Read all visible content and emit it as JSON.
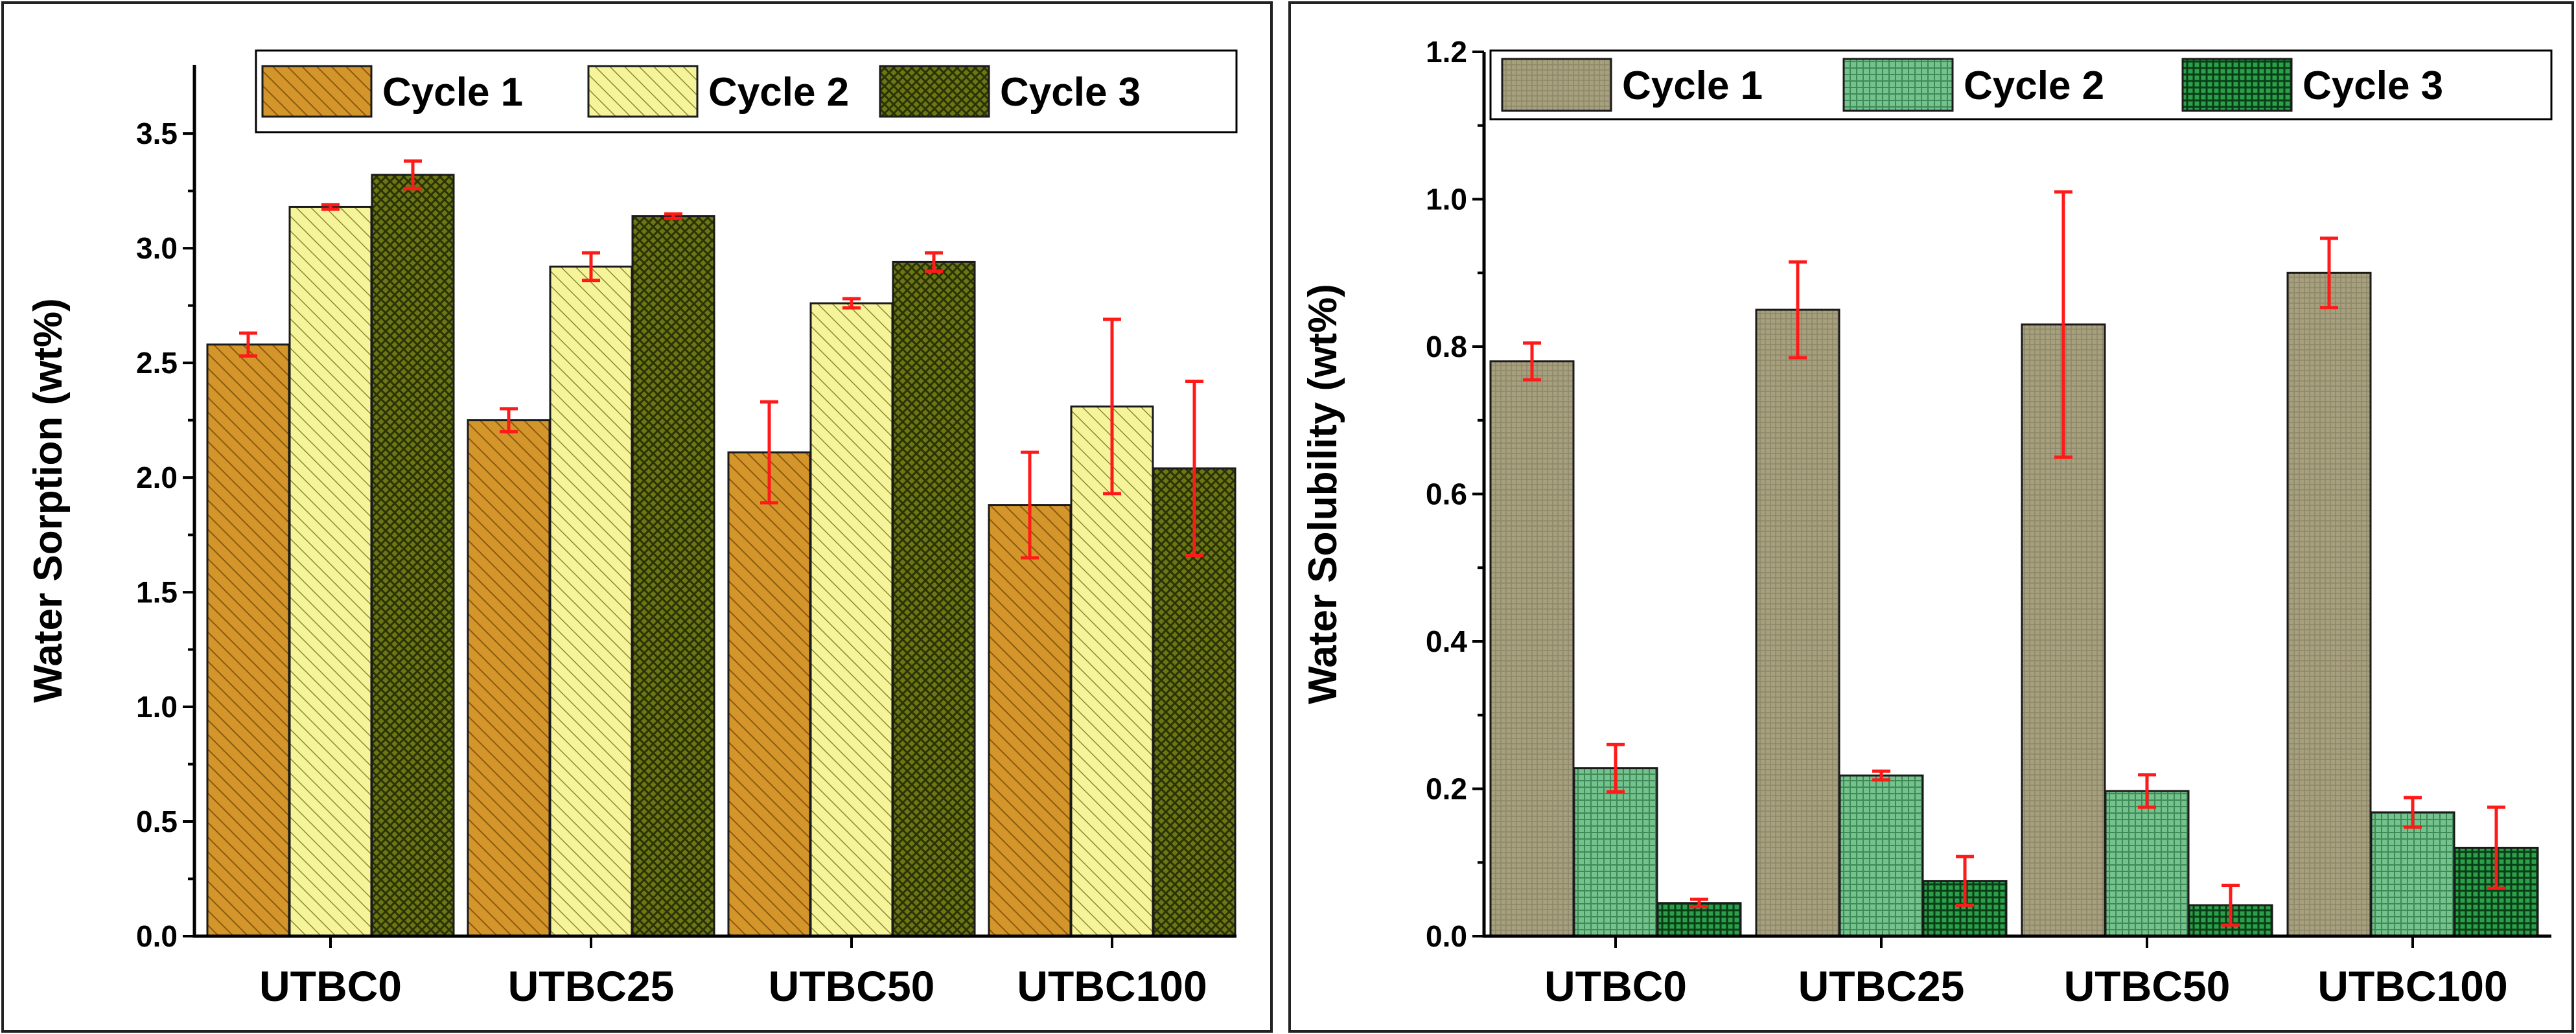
{
  "chart_data": [
    {
      "type": "bar",
      "ylabel": "Water Sorption (wt%)",
      "xlabel": "",
      "ylim": [
        0,
        3.8
      ],
      "yticks": [
        "0.0",
        "0.5",
        "1.0",
        "1.5",
        "2.0",
        "2.5",
        "3.0",
        "3.5"
      ],
      "categories": [
        "UTBC0",
        "UTBC25",
        "UTBC50",
        "UTBC100"
      ],
      "legend_position": "top-right",
      "series": [
        {
          "name": "Cycle 1",
          "values": [
            2.58,
            2.25,
            2.11,
            1.88
          ],
          "errors": [
            0.05,
            0.05,
            0.22,
            0.23
          ],
          "color": "#cc8a1f",
          "pattern": "diagonal-hatch"
        },
        {
          "name": "Cycle 2",
          "values": [
            3.18,
            2.92,
            2.76,
            2.31
          ],
          "errors": [
            0.01,
            0.06,
            0.02,
            0.38
          ],
          "color": "#f2f08a",
          "pattern": "diagonal-hatch"
        },
        {
          "name": "Cycle 3",
          "values": [
            3.32,
            3.14,
            2.94,
            2.04
          ],
          "errors": [
            0.06,
            0.01,
            0.04,
            0.38
          ],
          "color": "#5f6a10",
          "pattern": "cross-hatch"
        }
      ]
    },
    {
      "type": "bar",
      "ylabel": "Water Solubility (wt%)",
      "xlabel": "",
      "ylim": [
        0,
        1.2
      ],
      "yticks": [
        "0.0",
        "0.2",
        "0.4",
        "0.6",
        "0.8",
        "1.0",
        "1.2"
      ],
      "categories": [
        "UTBC0",
        "UTBC25",
        "UTBC50",
        "UTBC100"
      ],
      "legend_position": "top",
      "series": [
        {
          "name": "Cycle 1",
          "values": [
            0.78,
            0.85,
            0.83,
            0.9
          ],
          "errors": [
            0.025,
            0.065,
            0.18,
            0.047
          ],
          "color": "#a09a78",
          "pattern": "fine-grid"
        },
        {
          "name": "Cycle 2",
          "values": [
            0.228,
            0.218,
            0.197,
            0.168
          ],
          "errors": [
            0.032,
            0.006,
            0.022,
            0.02
          ],
          "color": "#6cba84",
          "pattern": "grid"
        },
        {
          "name": "Cycle 3",
          "values": [
            0.045,
            0.075,
            0.042,
            0.12
          ],
          "errors": [
            0.005,
            0.033,
            0.027,
            0.055
          ],
          "color": "#1f9a3c",
          "pattern": "dense-grid"
        }
      ]
    }
  ]
}
